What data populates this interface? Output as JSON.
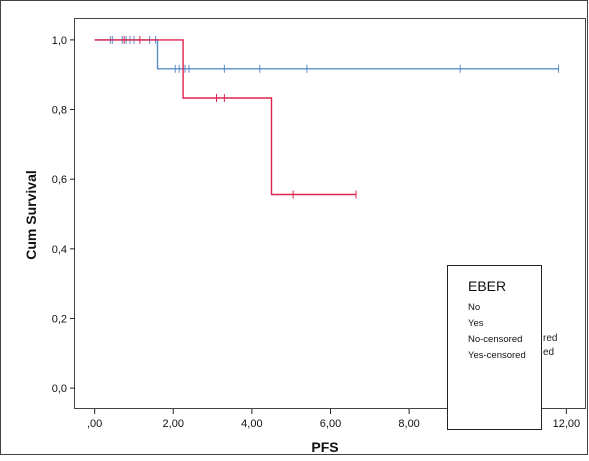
{
  "colors": {
    "no": "#5b8dc9",
    "yes": "#e0234d",
    "axis": "#222222",
    "frame": "#444444"
  },
  "chart_data": {
    "type": "line",
    "subtype": "kaplan-meier step",
    "xlabel": "PFS",
    "ylabel": "Cum Survival",
    "xlim": [
      -0.5,
      12.5
    ],
    "ylim": [
      -0.06,
      1.06
    ],
    "x_ticks": [
      0,
      2,
      4,
      6,
      8,
      10,
      12
    ],
    "x_tick_labels": [
      ",00",
      "2,00",
      "4,00",
      "6,00",
      "8,00",
      "10,00",
      "12,00"
    ],
    "y_ticks": [
      0,
      0.2,
      0.4,
      0.6,
      0.8,
      1.0
    ],
    "y_tick_labels": [
      "0,0",
      "0,2",
      "0,4",
      "0,6",
      "0,8",
      "1,0"
    ],
    "grid": false,
    "legend_placement": "bottom-right",
    "legend": {
      "title": "EBER",
      "entries": [
        "No",
        "Yes",
        "No-censored",
        "Yes-censored"
      ],
      "overflow_text": [
        "red",
        "ed"
      ]
    },
    "series": [
      {
        "name": "No",
        "color_key": "no",
        "steps": [
          [
            0.0,
            1.0
          ],
          [
            1.6,
            1.0
          ],
          [
            1.6,
            0.917
          ],
          [
            11.8,
            0.917
          ]
        ],
        "censored": [
          [
            0.4,
            1.0
          ],
          [
            0.45,
            1.0
          ],
          [
            0.7,
            1.0
          ],
          [
            0.8,
            1.0
          ],
          [
            0.9,
            1.0
          ],
          [
            1.0,
            1.0
          ],
          [
            1.4,
            1.0
          ],
          [
            1.55,
            1.0
          ],
          [
            2.05,
            0.917
          ],
          [
            2.15,
            0.917
          ],
          [
            2.3,
            0.917
          ],
          [
            2.4,
            0.917
          ],
          [
            3.3,
            0.917
          ],
          [
            4.2,
            0.917
          ],
          [
            5.4,
            0.917
          ],
          [
            9.3,
            0.917
          ],
          [
            11.8,
            0.917
          ]
        ]
      },
      {
        "name": "Yes",
        "color_key": "yes",
        "steps": [
          [
            0.0,
            1.0
          ],
          [
            2.25,
            1.0
          ],
          [
            2.25,
            0.833
          ],
          [
            4.5,
            0.833
          ],
          [
            4.5,
            0.556
          ],
          [
            6.65,
            0.556
          ]
        ],
        "censored": [
          [
            0.75,
            1.0
          ],
          [
            1.15,
            1.0
          ],
          [
            3.1,
            0.833
          ],
          [
            3.3,
            0.833
          ],
          [
            5.05,
            0.556
          ],
          [
            6.65,
            0.556
          ]
        ]
      }
    ]
  }
}
